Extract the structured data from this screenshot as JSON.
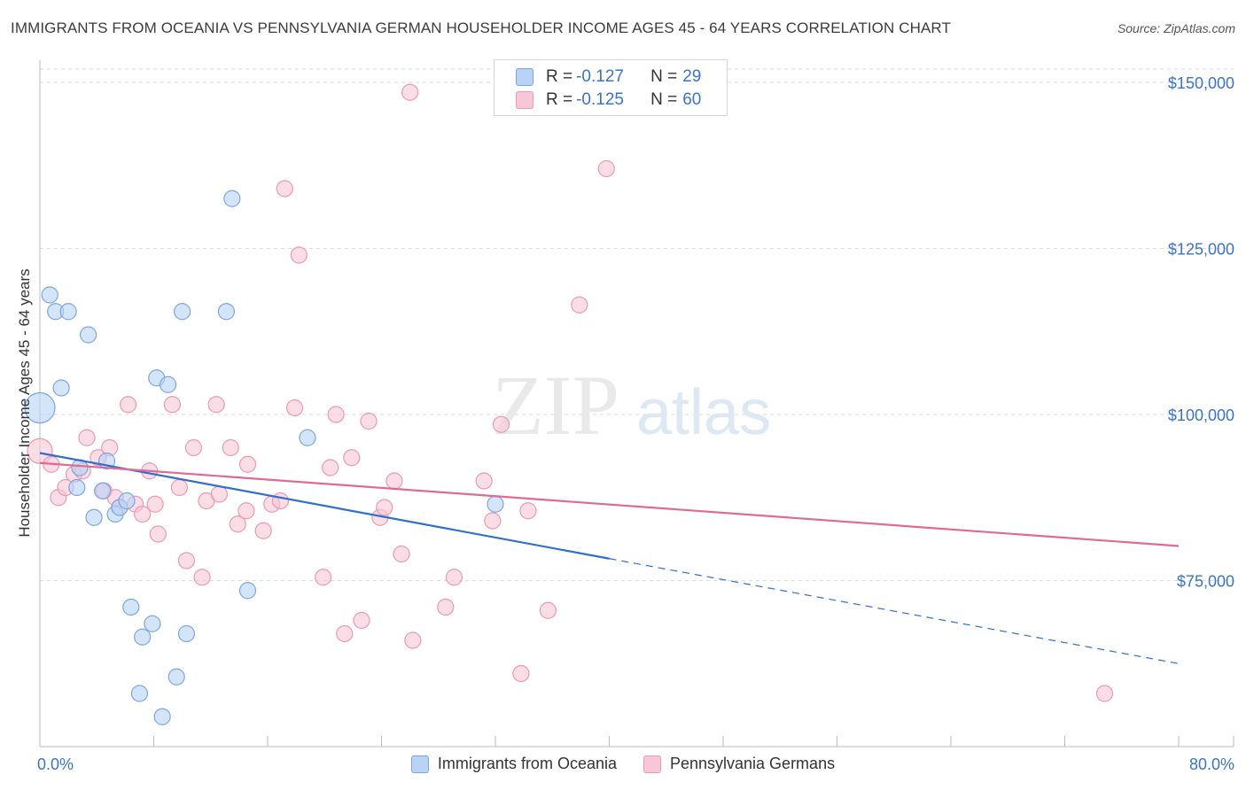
{
  "header": {
    "title": "IMMIGRANTS FROM OCEANIA VS PENNSYLVANIA GERMAN HOUSEHOLDER INCOME AGES 45 - 64 YEARS CORRELATION CHART",
    "source": "Source: ZipAtlas.com"
  },
  "watermark": {
    "zip": "ZIP",
    "atlas": "atlas"
  },
  "legend": {
    "rows": [
      {
        "r_label": "R = ",
        "r_value": "-0.127",
        "n_label": "N = ",
        "n_value": "29"
      },
      {
        "r_label": "R = ",
        "r_value": "-0.125",
        "n_label": "N = ",
        "n_value": "60"
      }
    ]
  },
  "colors": {
    "blue_fill": "#b8d3f5",
    "blue_stroke": "#7aa6e0",
    "blue_line": "#2f6fd0",
    "pink_fill": "#f8c6d6",
    "pink_stroke": "#ea98b3",
    "pink_line": "#e06a93",
    "grid": "#d9d9d9",
    "accent_text": "#3b74c4"
  },
  "chart_data": {
    "type": "scatter",
    "title": "IMMIGRANTS FROM OCEANIA VS PENNSYLVANIA GERMAN HOUSEHOLDER INCOME AGES 45 - 64 YEARS CORRELATION CHART",
    "xlabel": "",
    "ylabel": "Householder Income Ages 45 - 64 years",
    "xlim": [
      0,
      80
    ],
    "ylim": [
      50000,
      152000
    ],
    "x_tick_labels": [
      "0.0%",
      "80.0%"
    ],
    "y_ticks": [
      75000,
      100000,
      125000,
      150000
    ],
    "y_tick_labels": [
      "$75,000",
      "$100,000",
      "$125,000",
      "$150,000"
    ],
    "grid": true,
    "legend_position": "top-center",
    "series": [
      {
        "name": "Immigrants from Oceania",
        "color": "#b8d3f5",
        "r": -0.127,
        "n": 29,
        "points": [
          [
            0.0,
            101000
          ],
          [
            0.7,
            118000
          ],
          [
            1.1,
            115500
          ],
          [
            2.0,
            115500
          ],
          [
            3.4,
            112000
          ],
          [
            1.5,
            104000
          ],
          [
            2.6,
            89000
          ],
          [
            2.8,
            92000
          ],
          [
            3.8,
            84500
          ],
          [
            4.4,
            88500
          ],
          [
            4.7,
            93000
          ],
          [
            5.3,
            85000
          ],
          [
            5.6,
            86000
          ],
          [
            6.1,
            87000
          ],
          [
            6.4,
            71000
          ],
          [
            7.2,
            66500
          ],
          [
            7.0,
            58000
          ],
          [
            7.9,
            68500
          ],
          [
            8.2,
            105500
          ],
          [
            9.0,
            104500
          ],
          [
            9.6,
            60500
          ],
          [
            10.0,
            115500
          ],
          [
            10.3,
            67000
          ],
          [
            8.6,
            54500
          ],
          [
            13.1,
            115500
          ],
          [
            13.5,
            132500
          ],
          [
            14.6,
            73500
          ],
          [
            18.8,
            96500
          ],
          [
            32.0,
            86500
          ]
        ],
        "trend": {
          "x0": 0,
          "y0": 94200,
          "x1": 40,
          "y1": 78300,
          "dashed_to_x": 80,
          "dashed_to_y": 62500
        }
      },
      {
        "name": "Pennsylvania Germans",
        "color": "#f8c6d6",
        "r": -0.125,
        "n": 60,
        "points": [
          [
            0.0,
            94500
          ],
          [
            0.8,
            92500
          ],
          [
            1.3,
            87500
          ],
          [
            1.8,
            89000
          ],
          [
            2.4,
            91000
          ],
          [
            3.0,
            91500
          ],
          [
            3.3,
            96500
          ],
          [
            4.1,
            93500
          ],
          [
            4.5,
            88500
          ],
          [
            4.9,
            95000
          ],
          [
            5.3,
            87500
          ],
          [
            5.6,
            86000
          ],
          [
            6.2,
            101500
          ],
          [
            6.7,
            86500
          ],
          [
            7.2,
            85000
          ],
          [
            7.7,
            91500
          ],
          [
            8.1,
            86500
          ],
          [
            8.3,
            82000
          ],
          [
            9.3,
            101500
          ],
          [
            9.8,
            89000
          ],
          [
            10.3,
            78000
          ],
          [
            10.8,
            95000
          ],
          [
            11.4,
            75500
          ],
          [
            11.7,
            87000
          ],
          [
            12.4,
            101500
          ],
          [
            12.6,
            88000
          ],
          [
            13.4,
            95000
          ],
          [
            13.9,
            83500
          ],
          [
            14.5,
            85500
          ],
          [
            14.6,
            92500
          ],
          [
            15.7,
            82500
          ],
          [
            16.3,
            86500
          ],
          [
            16.9,
            87000
          ],
          [
            17.2,
            134000
          ],
          [
            17.9,
            101000
          ],
          [
            18.2,
            124000
          ],
          [
            19.9,
            75500
          ],
          [
            20.4,
            92000
          ],
          [
            20.8,
            100000
          ],
          [
            21.4,
            67000
          ],
          [
            21.9,
            93500
          ],
          [
            22.6,
            69000
          ],
          [
            23.1,
            99000
          ],
          [
            23.9,
            84500
          ],
          [
            24.2,
            86000
          ],
          [
            24.9,
            90000
          ],
          [
            25.4,
            79000
          ],
          [
            26.0,
            148500
          ],
          [
            26.2,
            66000
          ],
          [
            28.5,
            71000
          ],
          [
            29.1,
            75500
          ],
          [
            31.2,
            90000
          ],
          [
            31.8,
            84000
          ],
          [
            32.4,
            98500
          ],
          [
            33.8,
            61000
          ],
          [
            34.3,
            85500
          ],
          [
            35.7,
            70500
          ],
          [
            37.9,
            116500
          ],
          [
            39.8,
            137000
          ],
          [
            74.8,
            58000
          ]
        ],
        "trend": {
          "x0": 0,
          "y0": 92700,
          "x1": 80,
          "y1": 80200
        }
      }
    ]
  },
  "bottom_legend": [
    {
      "label": "Immigrants from Oceania"
    },
    {
      "label": "Pennsylvania Germans"
    }
  ]
}
